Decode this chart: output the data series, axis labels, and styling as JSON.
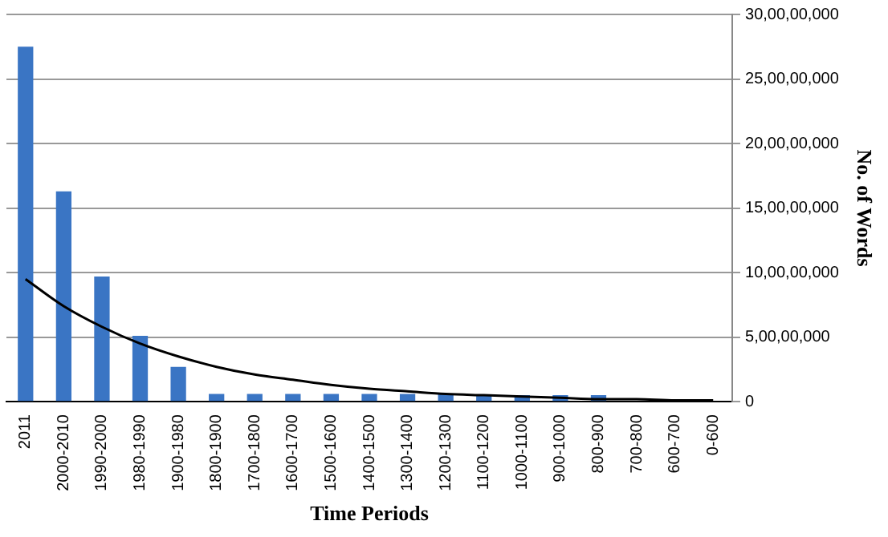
{
  "chart_data": {
    "type": "bar",
    "xlabel": "Time Periods",
    "ylabel": "No. of Words",
    "categories": [
      "2011",
      "2000-2010",
      "1990-2000",
      "1980-1990",
      "1900-1980",
      "1800-1900",
      "1700-1800",
      "1600-1700",
      "1500-1600",
      "1400-1500",
      "1300-1400",
      "1200-1300",
      "1100-1200",
      "1000-1100",
      "900-1000",
      "800-900",
      "700-800",
      "600-700",
      "0-600"
    ],
    "series": [
      {
        "color": "#3a75c4",
        "values": [
          275000000,
          163000000,
          97000000,
          51000000,
          27000000,
          6000000,
          6000000,
          6000000,
          6000000,
          6000000,
          6000000,
          6000000,
          5000000,
          5000000,
          5000000,
          5000000,
          0,
          0,
          0
        ]
      },
      {
        "type": "line",
        "color": "#000000",
        "values": [
          95000000,
          74000000,
          58000000,
          45000000,
          35000000,
          27000000,
          21000000,
          17000000,
          13000000,
          10000000,
          8000000,
          6000000,
          5000000,
          4000000,
          3000000,
          2000000,
          2000000,
          1000000,
          1000000
        ]
      }
    ],
    "ylim": [
      0,
      300000000
    ],
    "yticks": [
      {
        "value": 0,
        "label": "0"
      },
      {
        "value": 50000000,
        "label": "5,00,00,000"
      },
      {
        "value": 100000000,
        "label": "10,00,00,000"
      },
      {
        "value": 150000000,
        "label": "15,00,00,000"
      },
      {
        "value": 200000000,
        "label": "20,00,00,000"
      },
      {
        "value": 250000000,
        "label": "25,00,00,000"
      },
      {
        "value": 300000000,
        "label": "30,00,00,000"
      }
    ],
    "grid": "y",
    "marker": "none"
  }
}
